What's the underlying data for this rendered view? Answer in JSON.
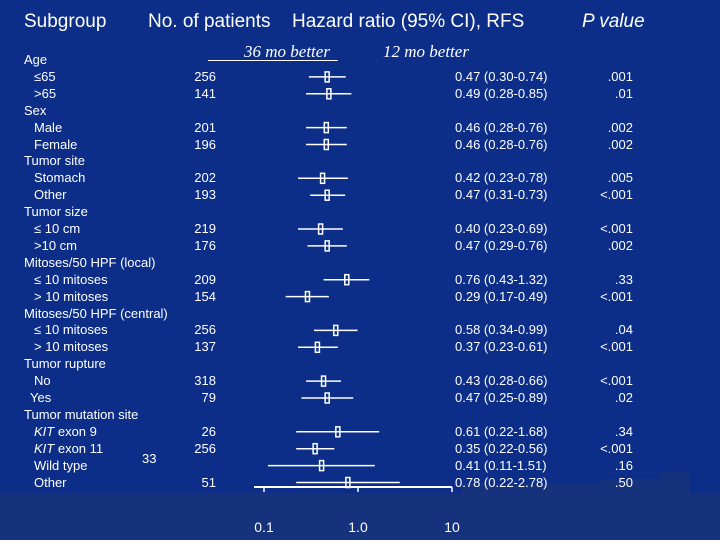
{
  "header": {
    "subgroup": "Subgroup",
    "patients": "No. of patients",
    "hazard": "Hazard ratio (95% CI), RFS",
    "p_value": "P value"
  },
  "favors": {
    "left": "36 mo better",
    "right": "12 mo better"
  },
  "stray_text": "33",
  "colors": {
    "background": "#0d2e88",
    "band": "#16327c",
    "foreground": "#ffffff"
  },
  "chart_data": {
    "type": "forest",
    "x_scale": "log",
    "xlim": [
      0.1,
      10
    ],
    "x_ticks": [
      "0.1",
      "1.0",
      "10"
    ],
    "reference_line": 1.0,
    "rows": [
      {
        "label": "Age",
        "kind": "header"
      },
      {
        "label": "≤65",
        "n": "256",
        "hr": 0.47,
        "lo": 0.3,
        "hi": 0.74,
        "ci_text": "0.47 (0.30-0.74)",
        "p": ".001",
        "indent": 1
      },
      {
        "label": ">65",
        "n": "141",
        "hr": 0.49,
        "lo": 0.28,
        "hi": 0.85,
        "ci_text": "0.49 (0.28-0.85)",
        "p": ".01",
        "indent": 1
      },
      {
        "label": "Sex",
        "kind": "header"
      },
      {
        "label": "Male",
        "n": "201",
        "hr": 0.46,
        "lo": 0.28,
        "hi": 0.76,
        "ci_text": "0.46 (0.28-0.76)",
        "p": ".002",
        "indent": 1
      },
      {
        "label": "Female",
        "n": "196",
        "hr": 0.46,
        "lo": 0.28,
        "hi": 0.76,
        "ci_text": "0.46 (0.28-0.76)",
        "p": ".002",
        "indent": 1
      },
      {
        "label": "Tumor site",
        "kind": "header"
      },
      {
        "label": "Stomach",
        "n": "202",
        "hr": 0.42,
        "lo": 0.23,
        "hi": 0.78,
        "ci_text": "0.42 (0.23-0.78)",
        "p": ".005",
        "indent": 1
      },
      {
        "label": "Other",
        "n": "193",
        "hr": 0.47,
        "lo": 0.31,
        "hi": 0.73,
        "ci_text": "0.47 (0.31-0.73)",
        "p": "<.001",
        "indent": 1
      },
      {
        "label": "Tumor size",
        "kind": "header"
      },
      {
        "label": "≤ 10 cm",
        "n": "219",
        "hr": 0.4,
        "lo": 0.23,
        "hi": 0.69,
        "ci_text": "0.40 (0.23-0.69)",
        "p": "<.001",
        "indent": 1
      },
      {
        "label": ">10 cm",
        "n": "176",
        "hr": 0.47,
        "lo": 0.29,
        "hi": 0.76,
        "ci_text": "0.47 (0.29-0.76)",
        "p": ".002",
        "indent": 1
      },
      {
        "label": "Mitoses/50 HPF (local)",
        "kind": "header"
      },
      {
        "label": "≤ 10 mitoses",
        "n": "209",
        "hr": 0.76,
        "lo": 0.43,
        "hi": 1.32,
        "ci_text": "0.76 (0.43-1.32)",
        "p": ".33",
        "indent": 1
      },
      {
        "label": "> 10 mitoses",
        "n": "154",
        "hr": 0.29,
        "lo": 0.17,
        "hi": 0.49,
        "ci_text": "0.29 (0.17-0.49)",
        "p": "<.001",
        "indent": 1
      },
      {
        "label": "Mitoses/50 HPF (central)",
        "kind": "header"
      },
      {
        "label": "≤ 10 mitoses",
        "n": "256",
        "hr": 0.58,
        "lo": 0.34,
        "hi": 0.99,
        "ci_text": "0.58 (0.34-0.99)",
        "p": ".04",
        "indent": 1
      },
      {
        "label": "> 10 mitoses",
        "n": "137",
        "hr": 0.37,
        "lo": 0.23,
        "hi": 0.61,
        "ci_text": "0.37 (0.23-0.61)",
        "p": "<.001",
        "indent": 1
      },
      {
        "label": "Tumor rupture",
        "kind": "header"
      },
      {
        "label": "No",
        "n": "318",
        "hr": 0.43,
        "lo": 0.28,
        "hi": 0.66,
        "ci_text": "0.43 (0.28-0.66)",
        "p": "<.001",
        "indent": 1
      },
      {
        "label": "Yes",
        "n": "79",
        "hr": 0.47,
        "lo": 0.25,
        "hi": 0.89,
        "ci_text": "0.47 (0.25-0.89)",
        "p": ".02",
        "indent": 0.5
      },
      {
        "label": "Tumor mutation site",
        "kind": "header"
      },
      {
        "label": "KIT exon 9",
        "n": "26",
        "hr": 0.61,
        "lo": 0.22,
        "hi": 1.68,
        "ci_text": "0.61 (0.22-1.68)",
        "p": ".34",
        "indent": 1,
        "italic_prefix": "KIT"
      },
      {
        "label": "KIT exon 11",
        "n": "256",
        "hr": 0.35,
        "lo": 0.22,
        "hi": 0.56,
        "ci_text": "0.35 (0.22-0.56)",
        "p": "<.001",
        "indent": 1,
        "italic_prefix": "KIT"
      },
      {
        "label": "Wild type",
        "n": "",
        "hr": 0.41,
        "lo": 0.11,
        "hi": 1.51,
        "ci_text": "0.41 (0.11-1.51)",
        "p": ".16",
        "indent": 1
      },
      {
        "label": "Other",
        "n": "51",
        "hr": 0.78,
        "lo": 0.22,
        "hi": 2.78,
        "ci_text": "0.78 (0.22-2.78)",
        "p": ".50",
        "indent": 1
      }
    ]
  }
}
